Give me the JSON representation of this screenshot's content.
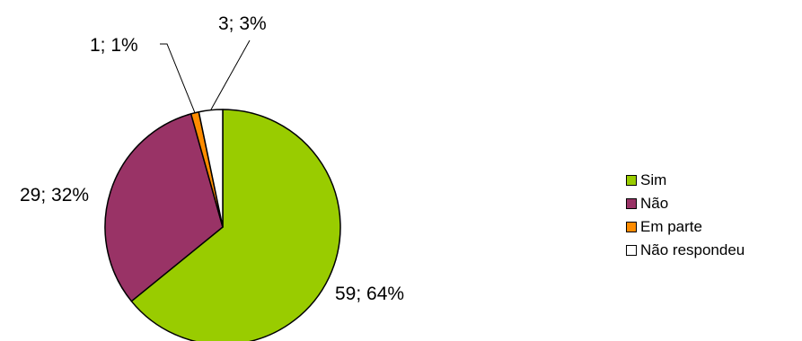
{
  "chart_data": {
    "type": "pie",
    "title": "",
    "start_angle_deg": 0,
    "direction": "clockwise",
    "slices": [
      {
        "name": "Sim",
        "value": 59,
        "percent": "64%",
        "label": "59; 64%",
        "color": "#99cc00"
      },
      {
        "name": "Não",
        "value": 29,
        "percent": "32%",
        "label": "29; 32%",
        "color": "#993366"
      },
      {
        "name": "Em parte",
        "value": 1,
        "percent": "1%",
        "label": "1; 1%",
        "color": "#ff8c00"
      },
      {
        "name": "Não respondeu",
        "value": 3,
        "percent": "3%",
        "label": "3; 3%",
        "color": "#ffffff"
      }
    ],
    "legend_position": "right"
  }
}
